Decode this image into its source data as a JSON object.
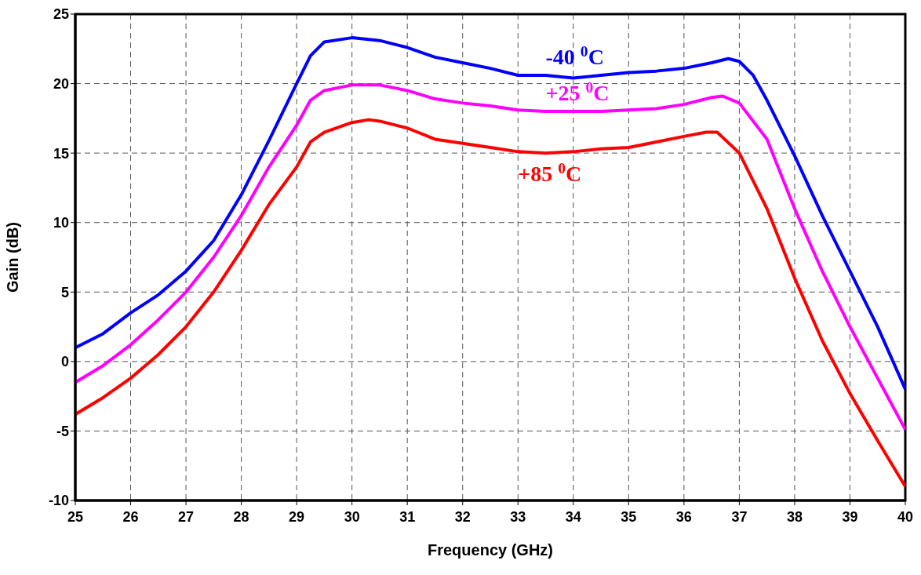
{
  "chart_data": {
    "type": "line",
    "xlabel": "Frequency (GHz)",
    "ylabel": "Gain (dB)",
    "xlim": [
      25,
      40
    ],
    "xticks": [
      25,
      26,
      27,
      28,
      29,
      30,
      31,
      32,
      33,
      34,
      35,
      36,
      37,
      38,
      39,
      40
    ],
    "ylim": [
      -10,
      25
    ],
    "yticks": [
      -10,
      -5,
      0,
      5,
      10,
      15,
      20,
      25
    ],
    "grid": true,
    "marker": "none",
    "line_style": "solid",
    "series": [
      {
        "name": "-40 $^{0}$C",
        "color": "#0000ff",
        "x": [
          25,
          25.5,
          26,
          26.5,
          27,
          27.5,
          28,
          28.5,
          29,
          29.25,
          29.5,
          30,
          30.5,
          31,
          31.5,
          32,
          32.5,
          33,
          33.5,
          34,
          34.5,
          35,
          35.5,
          36,
          36.5,
          36.8,
          37,
          37.25,
          37.5,
          38,
          38.5,
          39,
          39.5,
          40
        ],
        "values": [
          1.0,
          2.0,
          3.5,
          4.8,
          6.5,
          8.7,
          12.0,
          15.9,
          20.0,
          22.0,
          23.0,
          23.3,
          23.1,
          22.6,
          21.9,
          21.5,
          21.1,
          20.6,
          20.6,
          20.4,
          20.6,
          20.8,
          20.9,
          21.1,
          21.5,
          21.8,
          21.6,
          20.6,
          18.8,
          14.8,
          10.5,
          6.5,
          2.5,
          -2.0
        ]
      },
      {
        "name": "+25 $^{0}$C",
        "color": "#ff00ff",
        "x": [
          25,
          25.5,
          26,
          26.5,
          27,
          27.5,
          28,
          28.5,
          29,
          29.25,
          29.5,
          30,
          30.5,
          31,
          31.5,
          32,
          32.5,
          33,
          33.5,
          34,
          34.5,
          35,
          35.5,
          36,
          36.5,
          36.7,
          37,
          37.5,
          38,
          38.5,
          39,
          39.5,
          40
        ],
        "values": [
          -1.5,
          -0.3,
          1.2,
          3.0,
          5.0,
          7.5,
          10.5,
          14.0,
          17.0,
          18.8,
          19.5,
          19.9,
          19.9,
          19.5,
          18.9,
          18.6,
          18.4,
          18.1,
          18.0,
          18.0,
          18.0,
          18.1,
          18.2,
          18.5,
          19.0,
          19.1,
          18.6,
          16.0,
          11.0,
          6.5,
          2.5,
          -1.2,
          -4.9
        ]
      },
      {
        "name": "+85 $^{0}$C",
        "color": "#ff0000",
        "x": [
          25,
          25.5,
          26,
          26.5,
          27,
          27.5,
          28,
          28.5,
          29,
          29.25,
          29.5,
          30,
          30.3,
          30.5,
          31,
          31.5,
          32,
          32.5,
          33,
          33.5,
          34,
          34.5,
          35,
          35.5,
          36,
          36.4,
          36.6,
          37,
          37.5,
          38,
          38.5,
          39,
          39.5,
          40
        ],
        "values": [
          -3.8,
          -2.6,
          -1.2,
          0.5,
          2.5,
          5.0,
          8.0,
          11.3,
          14.0,
          15.8,
          16.5,
          17.2,
          17.4,
          17.3,
          16.8,
          16.0,
          15.7,
          15.4,
          15.1,
          15.0,
          15.1,
          15.3,
          15.4,
          15.8,
          16.2,
          16.5,
          16.5,
          15.0,
          11.0,
          6.0,
          1.5,
          -2.3,
          -5.7,
          -9.0
        ]
      }
    ]
  }
}
